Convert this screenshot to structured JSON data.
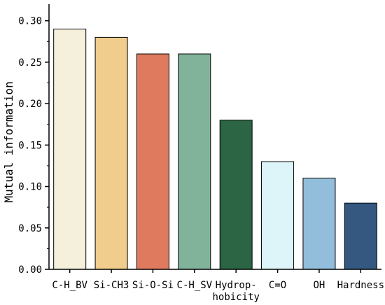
{
  "chart_data": {
    "type": "bar",
    "title": "",
    "xlabel": "",
    "ylabel": "Mutual information",
    "ylim": [
      0,
      0.32
    ],
    "yticks": [
      "0.00",
      "0.05",
      "0.10",
      "0.15",
      "0.20",
      "0.25",
      "0.30"
    ],
    "grid": false,
    "categories": [
      [
        "C-H_BV"
      ],
      [
        "Si-CH3"
      ],
      [
        "Si-O-Si"
      ],
      [
        "C-H_SV"
      ],
      [
        "Hydrop-",
        "hobicity"
      ],
      [
        "C=O"
      ],
      [
        "OH"
      ],
      [
        "Hardness"
      ]
    ],
    "values": [
      0.29,
      0.28,
      0.26,
      0.26,
      0.18,
      0.13,
      0.11,
      0.08
    ],
    "colors": [
      "#f5f0dc",
      "#f0cd8c",
      "#e07a5f",
      "#81b29a",
      "#2b6543",
      "#ddf5f8",
      "#92bddb",
      "#34587f"
    ]
  }
}
